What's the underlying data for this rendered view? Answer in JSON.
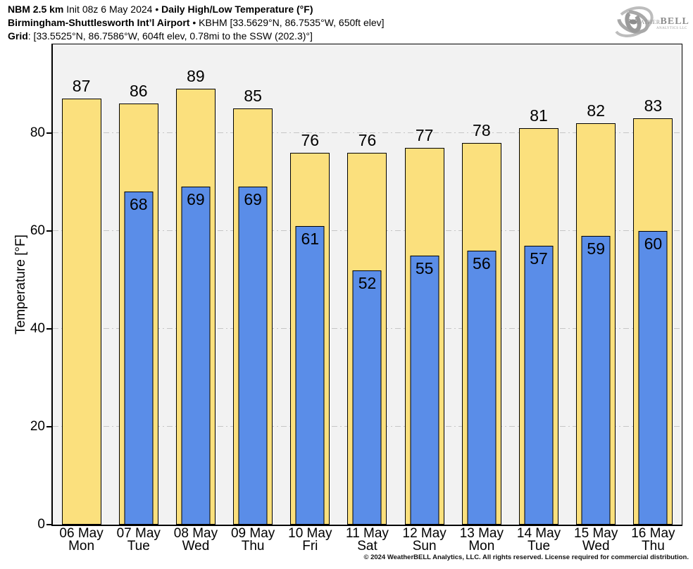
{
  "header": {
    "line1": {
      "model": "NBM 2.5 km",
      "init": " Init 08z 6 May 2024 • ",
      "product": "Daily High/Low Temperature (°F)"
    },
    "line2": {
      "station": "Birmingham-Shuttlesworth Int’l Airport",
      "meta": " • KBHM [33.5629°N, 86.7535°W, 650ft elev]"
    },
    "line3": {
      "label": "Grid",
      "meta": ": [33.5525°N, 86.7586°W, 604ft elev, 0.78mi to the SSW (202.3)°]"
    }
  },
  "logo": {
    "brand_weather": "Weather",
    "brand_bell": "BELL",
    "subtitle": "Analytics LLC"
  },
  "chart_data": {
    "type": "bar",
    "title": "Daily High/Low Temperature (°F)",
    "ylabel": "Temperature [°F]",
    "categories": [
      "06 May",
      "07 May",
      "08 May",
      "09 May",
      "10 May",
      "11 May",
      "12 May",
      "13 May",
      "14 May",
      "15 May",
      "16 May"
    ],
    "weekdays": [
      "Mon",
      "Tue",
      "Wed",
      "Thu",
      "Fri",
      "Sat",
      "Sun",
      "Mon",
      "Tue",
      "Wed",
      "Thu"
    ],
    "series": [
      {
        "name": "High",
        "color": "#FBE07D",
        "values": [
          87,
          86,
          89,
          85,
          76,
          76,
          77,
          78,
          81,
          82,
          83
        ]
      },
      {
        "name": "Low",
        "color": "#5A8DE8",
        "values": [
          null,
          68,
          69,
          69,
          61,
          52,
          55,
          56,
          57,
          59,
          60
        ]
      }
    ],
    "ylim": [
      0,
      98.1
    ],
    "yticks": [
      0,
      20,
      40,
      60,
      80
    ],
    "grid": true,
    "plot_bg": "#f2f2f2",
    "bar_border": "#000000"
  },
  "footer": {
    "copyright": "© 2024 WeatherBELL Analytics, LLC. All rights reserved. License required for commercial distribution."
  }
}
